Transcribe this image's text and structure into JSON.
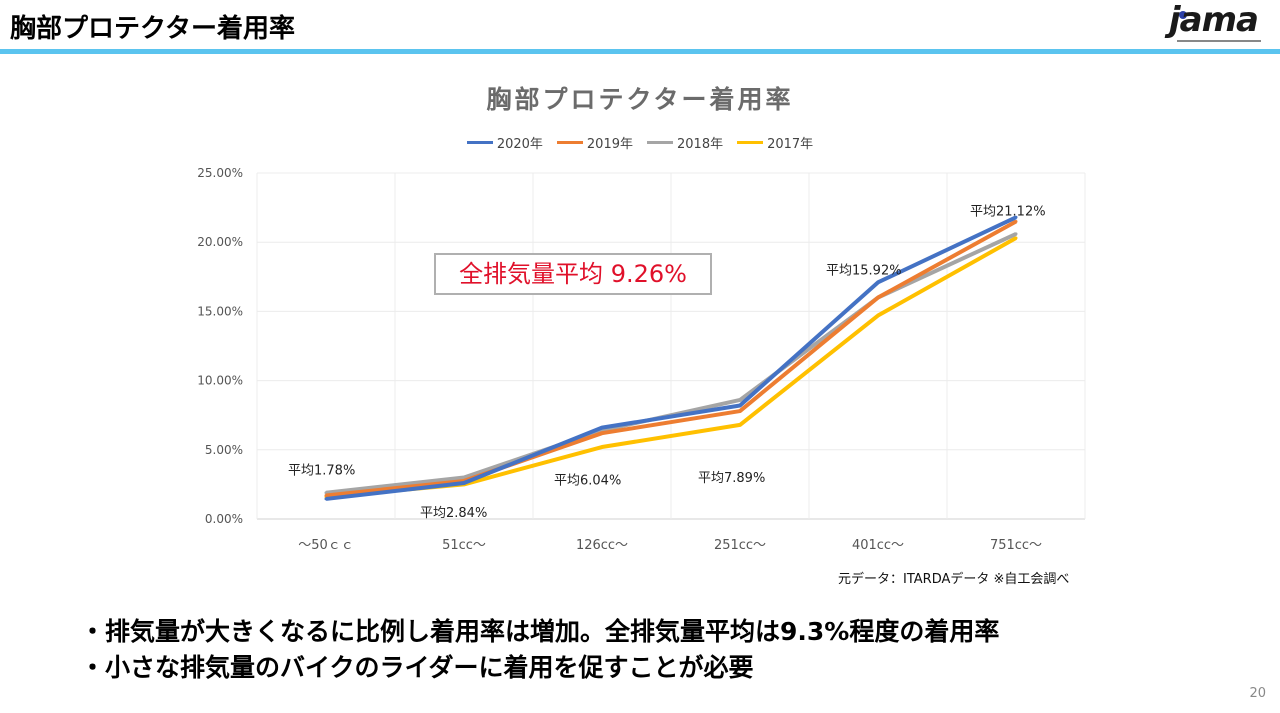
{
  "header": {
    "title": "胸部プロテクター着用率",
    "logo_text": "jama"
  },
  "colors": {
    "header_line": "#5bc4ef",
    "highlight_text": "#e0102a"
  },
  "chart_data": {
    "type": "line",
    "title": "胸部プロテクター着用率",
    "categories": [
      "～50ｃｃ",
      "51cc～",
      "126cc～",
      "251cc～",
      "401cc～",
      "751cc～"
    ],
    "ylim": [
      0,
      25
    ],
    "y_ticks": [
      "0.00%",
      "5.00%",
      "10.00%",
      "15.00%",
      "20.00%",
      "25.00%"
    ],
    "grid": true,
    "legend_position": "top",
    "series": [
      {
        "name": "2020年",
        "color": "#4472c4",
        "values": [
          1.45,
          2.6,
          6.6,
          8.2,
          17.1,
          21.8
        ]
      },
      {
        "name": "2019年",
        "color": "#ed7d31",
        "values": [
          1.7,
          2.75,
          6.2,
          7.8,
          16.0,
          21.5
        ]
      },
      {
        "name": "2018年",
        "color": "#a5a5a5",
        "values": [
          1.9,
          3.0,
          6.4,
          8.6,
          16.0,
          20.6
        ]
      },
      {
        "name": "2017年",
        "color": "#ffc000",
        "values": [
          1.6,
          2.5,
          5.2,
          6.8,
          14.7,
          20.3
        ]
      }
    ],
    "annotations": [
      "平均1.78%",
      "平均2.84%",
      "平均6.04%",
      "平均7.89%",
      "平均15.92%",
      "平均21.12%"
    ],
    "overall_average": "全排気量平均 9.26%"
  },
  "source_note": "元データ：ITARDAデータ ※自工会調べ",
  "bullets": [
    "・排気量が大きくなるに比例し着用率は増加。全排気量平均は9.3%程度の着用率",
    "・小さな排気量のバイクのライダーに着用を促すことが必要"
  ],
  "page_number": "20"
}
